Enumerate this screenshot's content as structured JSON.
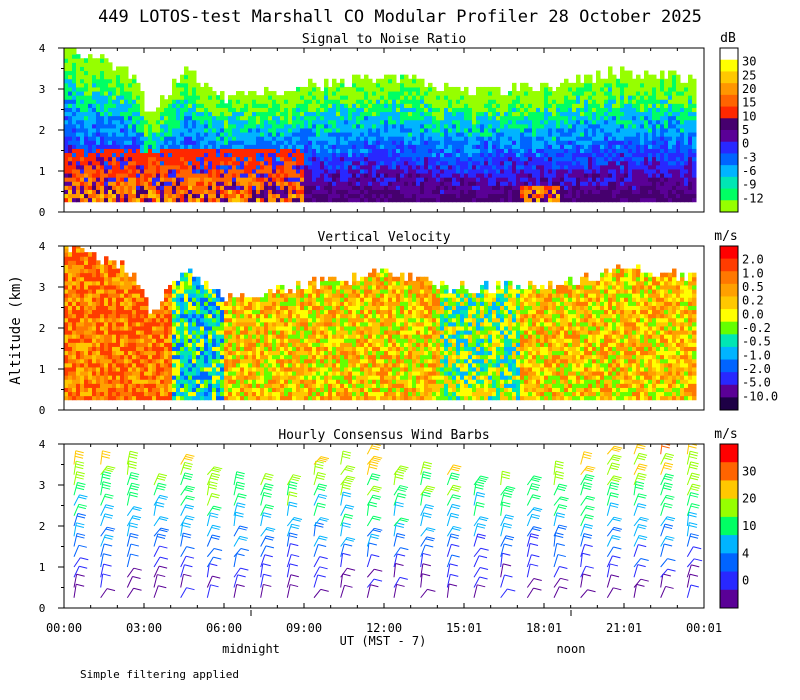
{
  "header": {
    "title": "449 LOTOS-test Marshall CO Modular Profiler 28 October 2025"
  },
  "footer": {
    "note": "Simple filtering applied",
    "midnight": "midnight",
    "noon": "noon"
  },
  "colors": {
    "background": "#ffffff",
    "frame": "#000000"
  },
  "chart_data": [
    {
      "type": "heatmap",
      "title": "Signal to Noise Ratio",
      "ylabel": "Altitude (km)",
      "xlabel": "UT  (MST - 7)",
      "y_ticks": [
        "0",
        "1",
        "2",
        "3",
        "4"
      ],
      "ylim": [
        0,
        4
      ],
      "x_ticks": [
        "00:00",
        "03:00",
        "06:00",
        "09:00",
        "12:00",
        "15:01",
        "18:01",
        "21:01",
        "00:01"
      ],
      "xlim_hours": [
        0,
        24
      ],
      "colorbar": {
        "unit": "dB",
        "labels": [
          "30",
          "25",
          "20",
          "15",
          "10",
          "5",
          "0",
          "-3",
          "-6",
          "-9",
          "-12"
        ],
        "colors": [
          "#ffffff",
          "#ffff00",
          "#ffc800",
          "#ff9600",
          "#ff6400",
          "#ff2800",
          "#46006e",
          "#5a0096",
          "#2828ff",
          "#0064ff",
          "#00b4ff",
          "#00e6b4",
          "#00ff64",
          "#96ff00"
        ]
      },
      "profile_top_km": [
        {
          "hour": 0,
          "top": 4.0
        },
        {
          "hour": 2.5,
          "top": 3.3
        },
        {
          "hour": 3.2,
          "top": 2.3
        },
        {
          "hour": 4.5,
          "top": 3.4
        },
        {
          "hour": 6,
          "top": 2.7
        },
        {
          "hour": 9,
          "top": 3.0
        },
        {
          "hour": 12,
          "top": 3.3
        },
        {
          "hour": 15,
          "top": 2.9
        },
        {
          "hour": 18,
          "top": 3.0
        },
        {
          "hour": 21,
          "top": 3.4
        },
        {
          "hour": 24,
          "top": 3.2
        }
      ]
    },
    {
      "type": "heatmap",
      "title": "Vertical Velocity",
      "ylabel": "Altitude (km)",
      "y_ticks": [
        "0",
        "1",
        "2",
        "3",
        "4"
      ],
      "ylim": [
        0,
        4
      ],
      "xlim_hours": [
        0,
        24
      ],
      "colorbar": {
        "unit": "m/s",
        "labels": [
          "2.0",
          "1.0",
          "0.5",
          "0.2",
          "0.0",
          "-0.2",
          "-0.5",
          "-1.0",
          "-2.0",
          "-5.0",
          "-10.0"
        ],
        "colors": [
          "#ff0000",
          "#ff3c00",
          "#ff7800",
          "#ffa000",
          "#ffc800",
          "#ffff00",
          "#64ff00",
          "#00e6b4",
          "#00b4ff",
          "#0064ff",
          "#2828ff",
          "#5a0096",
          "#1e0046"
        ]
      }
    },
    {
      "type": "scatter",
      "title": "Hourly Consensus Wind Barbs",
      "ylabel": "Altitude (km)",
      "y_ticks": [
        "0",
        "1",
        "2",
        "3",
        "4"
      ],
      "ylim": [
        0,
        4
      ],
      "xlim_hours": [
        0,
        24
      ],
      "colorbar": {
        "unit": "m/s",
        "labels": [
          "30",
          "20",
          "10",
          "4",
          "0"
        ],
        "colors": [
          "#ff0000",
          "#ff6400",
          "#ffc800",
          "#96ff00",
          "#00ff64",
          "#00b4ff",
          "#0064ff",
          "#2828ff",
          "#5a0096"
        ]
      },
      "barb_hours": [
        0,
        1,
        2,
        3,
        4,
        5,
        6,
        7,
        8,
        9,
        10,
        11,
        12,
        13,
        14,
        15,
        16,
        17,
        18,
        19,
        20,
        21,
        22,
        23
      ],
      "barb_altitudes_km": [
        0.25,
        0.5,
        0.75,
        1.0,
        1.25,
        1.5,
        1.75,
        2.0,
        2.25,
        2.5,
        2.75,
        3.0,
        3.25,
        3.5,
        3.75
      ],
      "barb_top_km": [
        3.7,
        3.7,
        3.7,
        3.0,
        3.6,
        3.3,
        3.2,
        3.2,
        3.1,
        3.5,
        3.7,
        3.9,
        3.4,
        3.3,
        3.3,
        3.2,
        3.1,
        3.1,
        3.4,
        3.7,
        3.9,
        3.9,
        3.8,
        3.8
      ]
    }
  ]
}
